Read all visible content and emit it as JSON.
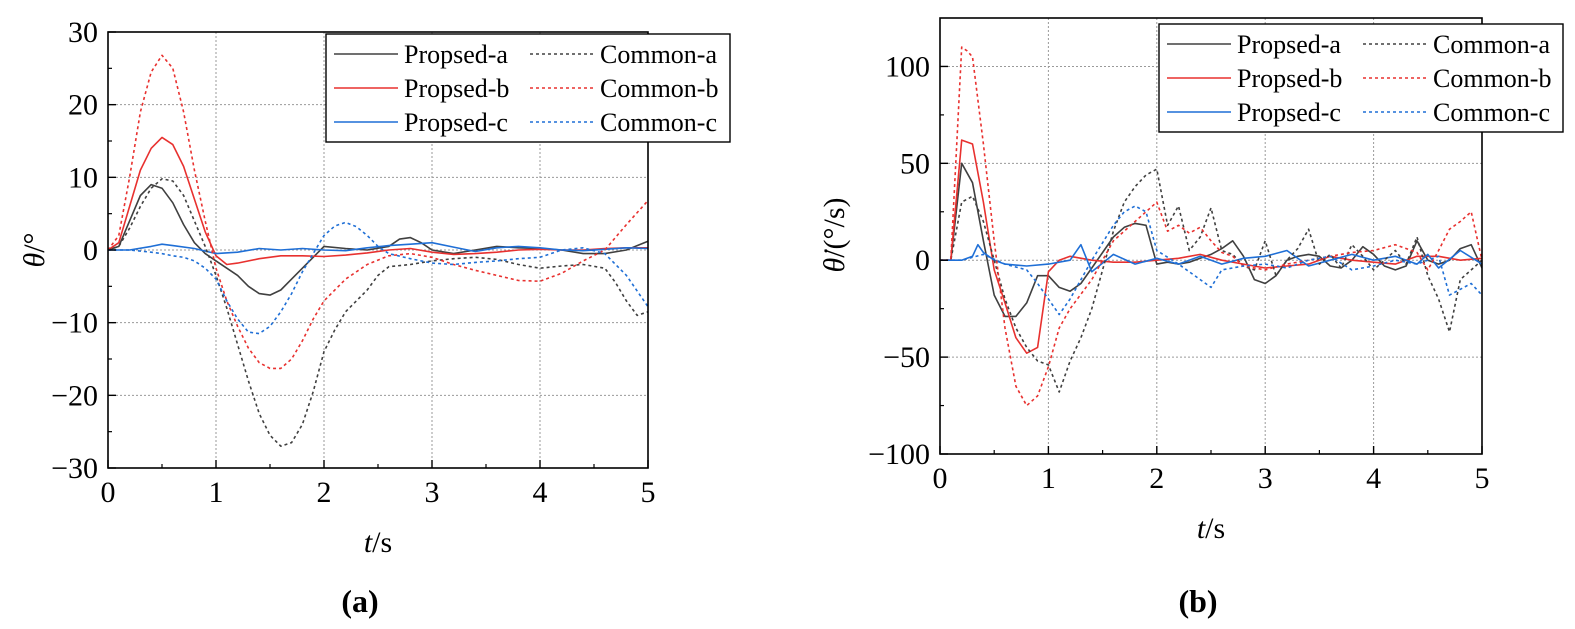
{
  "chart_data": [
    {
      "type": "line",
      "panel_label": "(a)",
      "xlabel_var": "t",
      "xlabel_unit": "/s",
      "ylabel_var": "θ",
      "ylabel_unit": "/°",
      "xlim": [
        0,
        5
      ],
      "ylim": [
        -30,
        30
      ],
      "xticks": [
        0,
        1,
        2,
        3,
        4,
        5
      ],
      "xtick_labels": [
        "0",
        "1",
        "2",
        "3",
        "4",
        "5"
      ],
      "yticks": [
        -30,
        -20,
        -10,
        0,
        10,
        20,
        30
      ],
      "ytick_labels": [
        "−30",
        "−20",
        "−10",
        "0",
        "10",
        "20",
        "30"
      ],
      "grid": true,
      "legend_position": "top-right",
      "legend_columns": 2,
      "series": [
        {
          "name": "Propsed-a",
          "color": "#404040",
          "dash": "solid",
          "x": [
            0,
            0.1,
            0.2,
            0.3,
            0.4,
            0.5,
            0.6,
            0.7,
            0.8,
            0.9,
            1.0,
            1.1,
            1.2,
            1.3,
            1.4,
            1.5,
            1.6,
            1.7,
            1.8,
            1.9,
            2.0,
            2.2,
            2.4,
            2.6,
            2.7,
            2.8,
            2.9,
            3.0,
            3.2,
            3.4,
            3.6,
            3.8,
            4.0,
            4.2,
            4.4,
            4.6,
            4.8,
            5.0
          ],
          "y": [
            0,
            0.5,
            4,
            7.5,
            9,
            8.5,
            6.5,
            3.5,
            1,
            -0.5,
            -1.5,
            -2.5,
            -3.5,
            -5,
            -6,
            -6.2,
            -5.5,
            -4,
            -2.5,
            -1,
            0.5,
            0.2,
            0,
            0.5,
            1.5,
            1.7,
            1,
            0,
            -0.5,
            0,
            0.5,
            0.3,
            0.2,
            0,
            -0.5,
            -0.5,
            0,
            1.2
          ]
        },
        {
          "name": "Propsed-b",
          "color": "#e8312f",
          "dash": "solid",
          "x": [
            0,
            0.1,
            0.2,
            0.3,
            0.4,
            0.5,
            0.6,
            0.7,
            0.8,
            0.9,
            1.0,
            1.1,
            1.2,
            1.4,
            1.6,
            1.8,
            2.0,
            2.2,
            2.4,
            2.6,
            2.8,
            3.0,
            3.2,
            3.4,
            3.6,
            3.8,
            4.0,
            4.2,
            4.4,
            4.6,
            4.8,
            5.0
          ],
          "y": [
            0,
            1,
            6,
            11,
            14,
            15.5,
            14.5,
            11.5,
            7,
            2.5,
            -0.8,
            -2,
            -1.8,
            -1.2,
            -0.8,
            -0.8,
            -0.9,
            -0.7,
            -0.4,
            0,
            0.2,
            -0.3,
            -0.6,
            -0.5,
            -0.3,
            0,
            0.1,
            0,
            0,
            0.2,
            0.3,
            0.3
          ]
        },
        {
          "name": "Propsed-c",
          "color": "#1f6fd6",
          "dash": "solid",
          "x": [
            0,
            0.2,
            0.4,
            0.5,
            0.6,
            0.8,
            1.0,
            1.2,
            1.4,
            1.6,
            1.8,
            2.0,
            2.2,
            2.4,
            2.6,
            2.8,
            3.0,
            3.2,
            3.4,
            3.6,
            3.8,
            4.0,
            4.2,
            4.4,
            4.6,
            4.8,
            5.0
          ],
          "y": [
            0,
            0,
            0.5,
            0.8,
            0.6,
            0.2,
            -0.5,
            -0.3,
            0.2,
            0,
            0.2,
            0,
            -0.1,
            0.3,
            0.6,
            0.8,
            1,
            0.4,
            -0.2,
            0.3,
            0.5,
            0.3,
            0,
            -0.1,
            0.1,
            0.3,
            0.2
          ]
        },
        {
          "name": "Common-a",
          "color": "#404040",
          "dash": "dot",
          "x": [
            0,
            0.1,
            0.2,
            0.3,
            0.4,
            0.5,
            0.6,
            0.7,
            0.8,
            0.9,
            1.0,
            1.1,
            1.2,
            1.3,
            1.4,
            1.5,
            1.6,
            1.7,
            1.8,
            1.9,
            2.0,
            2.1,
            2.2,
            2.3,
            2.4,
            2.5,
            2.6,
            2.8,
            3.0,
            3.2,
            3.4,
            3.6,
            3.8,
            4.0,
            4.2,
            4.4,
            4.6,
            4.7,
            4.8,
            4.9,
            5.0
          ],
          "y": [
            0,
            0.5,
            3,
            6,
            8.5,
            9.8,
            9.5,
            7.5,
            4,
            0.5,
            -3.5,
            -8,
            -13,
            -18,
            -22.5,
            -25.5,
            -27,
            -26.5,
            -24,
            -19.5,
            -14,
            -11,
            -8.5,
            -7,
            -5.5,
            -3.5,
            -2.3,
            -2,
            -1.5,
            -1.2,
            -1,
            -1.3,
            -2,
            -2.5,
            -2.2,
            -2,
            -2.5,
            -4.5,
            -7,
            -9,
            -8.5
          ]
        },
        {
          "name": "Common-b",
          "color": "#e8312f",
          "dash": "dot",
          "x": [
            0,
            0.1,
            0.2,
            0.3,
            0.4,
            0.5,
            0.6,
            0.7,
            0.8,
            0.9,
            1.0,
            1.1,
            1.2,
            1.3,
            1.4,
            1.5,
            1.6,
            1.7,
            1.8,
            1.9,
            2.0,
            2.2,
            2.4,
            2.6,
            2.8,
            3.0,
            3.2,
            3.4,
            3.6,
            3.8,
            4.0,
            4.2,
            4.4,
            4.6,
            4.8,
            5.0
          ],
          "y": [
            0,
            2,
            10,
            19,
            24.5,
            26.8,
            25,
            19,
            11,
            4,
            -2.5,
            -7,
            -10.5,
            -13.5,
            -15.5,
            -16.3,
            -16.3,
            -15,
            -12.5,
            -9.5,
            -7,
            -4,
            -2,
            -0.8,
            -0.5,
            -1,
            -2,
            -2.8,
            -3.5,
            -4.2,
            -4.3,
            -3.2,
            -1.5,
            0,
            3.5,
            6.8
          ]
        },
        {
          "name": "Common-c",
          "color": "#1f6fd6",
          "dash": "dot",
          "x": [
            0,
            0.2,
            0.4,
            0.5,
            0.6,
            0.7,
            0.8,
            0.9,
            1.0,
            1.1,
            1.2,
            1.3,
            1.4,
            1.5,
            1.6,
            1.7,
            1.8,
            1.9,
            2.0,
            2.1,
            2.2,
            2.3,
            2.4,
            2.5,
            2.6,
            2.8,
            3.0,
            3.2,
            3.4,
            3.6,
            3.8,
            4.0,
            4.2,
            4.4,
            4.6,
            4.8,
            5.0
          ],
          "y": [
            0,
            0,
            -0.3,
            -0.5,
            -0.8,
            -1,
            -1.5,
            -2.5,
            -4,
            -7,
            -9.5,
            -11.3,
            -11.5,
            -10.5,
            -8.5,
            -6,
            -3,
            -0.5,
            2,
            3.3,
            3.8,
            3.2,
            2,
            0.5,
            -0.5,
            -1.2,
            -1.8,
            -2,
            -1.7,
            -1.5,
            -1.2,
            -1,
            0,
            0.3,
            -0.5,
            -3.5,
            -7.8
          ]
        }
      ]
    },
    {
      "type": "line",
      "panel_label": "(b)",
      "xlabel_var": "t",
      "xlabel_unit": "/s",
      "ylabel_var": "θ̇",
      "ylabel_unit": "/(°/s)",
      "xlim": [
        0,
        5
      ],
      "ylim": [
        -100,
        125
      ],
      "xticks": [
        0,
        1,
        2,
        3,
        4,
        5
      ],
      "xtick_labels": [
        "0",
        "1",
        "2",
        "3",
        "4",
        "5"
      ],
      "yticks": [
        -100,
        -50,
        0,
        50,
        100
      ],
      "ytick_labels": [
        "−100",
        "−50",
        "0",
        "50",
        "100"
      ],
      "grid": true,
      "legend_position": "top-right",
      "legend_columns": 2,
      "series": [
        {
          "name": "Propsed-a",
          "color": "#404040",
          "dash": "solid",
          "x": [
            0,
            0.1,
            0.2,
            0.3,
            0.4,
            0.5,
            0.6,
            0.7,
            0.8,
            0.9,
            1.0,
            1.1,
            1.2,
            1.3,
            1.4,
            1.5,
            1.6,
            1.7,
            1.8,
            1.9,
            2.0,
            2.1,
            2.2,
            2.3,
            2.4,
            2.5,
            2.6,
            2.7,
            2.8,
            2.9,
            3.0,
            3.1,
            3.2,
            3.3,
            3.4,
            3.5,
            3.6,
            3.7,
            3.8,
            3.9,
            4.0,
            4.1,
            4.2,
            4.3,
            4.4,
            4.5,
            4.6,
            4.7,
            4.8,
            4.9,
            5.0
          ],
          "y": [
            0,
            0,
            50,
            40,
            10,
            -18,
            -29,
            -29,
            -22,
            -8,
            -8,
            -14,
            -16,
            -12,
            -4,
            4,
            12,
            17,
            19,
            18,
            -2,
            -1,
            -2,
            -1,
            1,
            3,
            6,
            10,
            2,
            -10,
            -12,
            -8,
            0,
            2,
            3,
            2,
            -3,
            -4,
            0,
            7,
            3,
            -3,
            -5,
            -3,
            10,
            0,
            -2,
            0,
            6,
            8,
            -4
          ]
        },
        {
          "name": "Propsed-b",
          "color": "#e8312f",
          "dash": "solid",
          "x": [
            0,
            0.1,
            0.2,
            0.3,
            0.4,
            0.5,
            0.6,
            0.7,
            0.8,
            0.9,
            1.0,
            1.1,
            1.2,
            1.4,
            1.6,
            1.8,
            2.0,
            2.2,
            2.4,
            2.6,
            2.8,
            3.0,
            3.2,
            3.4,
            3.6,
            3.8,
            4.0,
            4.2,
            4.4,
            4.6,
            4.8,
            5.0
          ],
          "y": [
            0,
            0,
            62,
            60,
            30,
            -5,
            -22,
            -40,
            -48,
            -45,
            -6,
            0,
            2,
            0,
            -1,
            -1,
            0,
            1,
            3,
            0,
            -2,
            -4,
            -3,
            -2,
            2,
            0,
            -1,
            -2,
            2,
            2,
            0,
            1
          ]
        },
        {
          "name": "Propsed-c",
          "color": "#1f6fd6",
          "dash": "solid",
          "x": [
            0,
            0.2,
            0.3,
            0.35,
            0.4,
            0.5,
            0.6,
            0.8,
            1.0,
            1.2,
            1.3,
            1.4,
            1.6,
            1.8,
            2.0,
            2.2,
            2.4,
            2.6,
            2.8,
            3.0,
            3.2,
            3.4,
            3.6,
            3.8,
            4.0,
            4.2,
            4.4,
            4.5,
            4.6,
            4.8,
            5.0
          ],
          "y": [
            0,
            0,
            2,
            8,
            4,
            0,
            -2,
            -3,
            -2,
            0,
            8,
            -6,
            3,
            -2,
            1,
            -2,
            2,
            -2,
            1,
            2,
            5,
            -3,
            0,
            3,
            0,
            2,
            -2,
            3,
            -4,
            5,
            -2
          ]
        },
        {
          "name": "Common-a",
          "color": "#404040",
          "dash": "dot",
          "x": [
            0,
            0.1,
            0.2,
            0.3,
            0.4,
            0.5,
            0.6,
            0.7,
            0.8,
            0.9,
            1.0,
            1.1,
            1.2,
            1.3,
            1.4,
            1.5,
            1.6,
            1.7,
            1.8,
            1.9,
            2.0,
            2.1,
            2.2,
            2.3,
            2.4,
            2.5,
            2.6,
            2.7,
            2.8,
            2.9,
            3.0,
            3.1,
            3.2,
            3.3,
            3.4,
            3.5,
            3.6,
            3.7,
            3.8,
            3.9,
            4.0,
            4.1,
            4.2,
            4.3,
            4.4,
            4.5,
            4.6,
            4.7,
            4.8,
            4.9,
            5.0
          ],
          "y": [
            0,
            0,
            30,
            33,
            20,
            0,
            -20,
            -35,
            -45,
            -52,
            -54,
            -68,
            -52,
            -40,
            -25,
            -5,
            15,
            30,
            38,
            44,
            47,
            18,
            28,
            5,
            12,
            27,
            5,
            3,
            -3,
            -5,
            10,
            -8,
            0,
            6,
            16,
            -2,
            3,
            -4,
            8,
            2,
            -5,
            0,
            5,
            -2,
            12,
            -8,
            -20,
            -37,
            -10,
            -5,
            0
          ]
        },
        {
          "name": "Common-b",
          "color": "#e8312f",
          "dash": "dot",
          "x": [
            0,
            0.1,
            0.2,
            0.25,
            0.3,
            0.4,
            0.5,
            0.6,
            0.7,
            0.8,
            0.9,
            1.0,
            1.1,
            1.2,
            1.4,
            1.6,
            1.8,
            1.9,
            2.0,
            2.1,
            2.2,
            2.3,
            2.4,
            2.5,
            2.6,
            2.7,
            2.8,
            3.0,
            3.2,
            3.4,
            3.6,
            3.8,
            4.0,
            4.2,
            4.4,
            4.5,
            4.6,
            4.7,
            4.8,
            4.9,
            5.0
          ],
          "y": [
            0,
            0,
            110,
            108,
            105,
            60,
            10,
            -35,
            -65,
            -75,
            -70,
            -55,
            -35,
            -25,
            -10,
            10,
            20,
            25,
            30,
            15,
            18,
            14,
            17,
            10,
            4,
            2,
            -3,
            -5,
            -2,
            0,
            2,
            4,
            5,
            8,
            4,
            -5,
            5,
            16,
            20,
            25,
            0
          ]
        },
        {
          "name": "Common-c",
          "color": "#1f6fd6",
          "dash": "dot",
          "x": [
            0,
            0.2,
            0.4,
            0.6,
            0.8,
            0.9,
            1.0,
            1.1,
            1.2,
            1.4,
            1.6,
            1.7,
            1.8,
            1.9,
            2.0,
            2.2,
            2.4,
            2.5,
            2.6,
            2.8,
            3.0,
            3.2,
            3.4,
            3.6,
            3.8,
            4.0,
            4.2,
            4.4,
            4.6,
            4.7,
            4.8,
            4.9,
            5.0
          ],
          "y": [
            0,
            0,
            3,
            -2,
            -5,
            -12,
            -20,
            -28,
            -20,
            0,
            18,
            25,
            28,
            25,
            5,
            -2,
            -10,
            -14,
            -5,
            -3,
            -2,
            -4,
            0,
            2,
            -5,
            -3,
            0,
            -2,
            2,
            -18,
            -15,
            -12,
            -18
          ]
        }
      ]
    }
  ]
}
